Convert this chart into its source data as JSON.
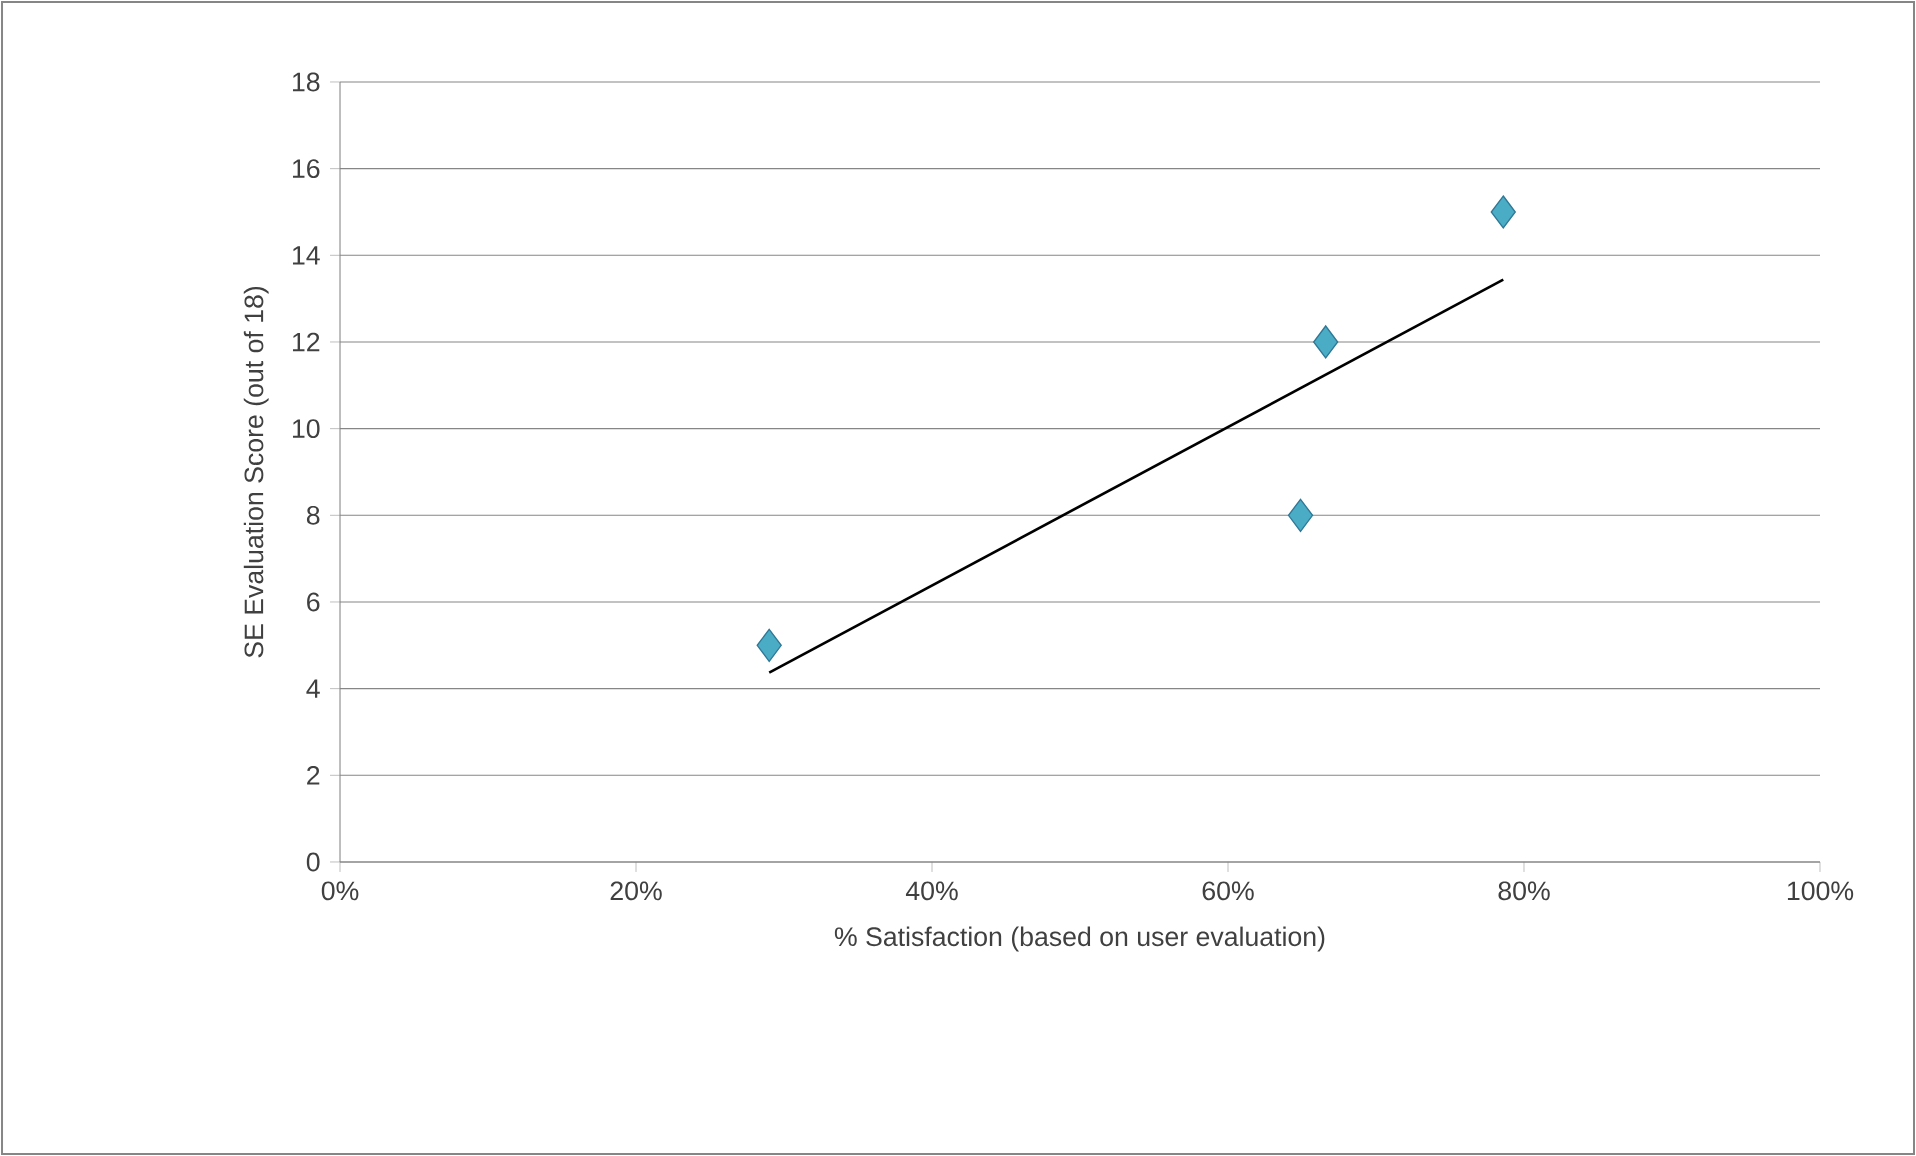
{
  "chart_data": {
    "type": "scatter",
    "xlabel": "% Satisfaction (based on user evaluation)",
    "ylabel": "SE Evaluation Score (out of 18)",
    "xlim": [
      0,
      100
    ],
    "xticks": [
      {
        "value": 0,
        "label": "0%"
      },
      {
        "value": 20,
        "label": "20%"
      },
      {
        "value": 40,
        "label": "40%"
      },
      {
        "value": 60,
        "label": "60%"
      },
      {
        "value": 80,
        "label": "80%"
      },
      {
        "value": 100,
        "label": "100%"
      }
    ],
    "ylim": [
      0,
      18
    ],
    "yticks": [
      0,
      2,
      4,
      6,
      8,
      10,
      12,
      14,
      16,
      18
    ],
    "grid": "y",
    "series": [
      {
        "type": "scatter",
        "marker": "diamond",
        "color": "#4bacc6",
        "x": [
          29,
          66.6,
          64.9,
          78.6
        ],
        "values": [
          5,
          12,
          8,
          15
        ]
      },
      {
        "type": "line",
        "marker": "none",
        "line_style": "solid",
        "color": "#000000",
        "x": [
          29,
          78.6
        ],
        "values": [
          4.37,
          13.44
        ]
      }
    ]
  }
}
